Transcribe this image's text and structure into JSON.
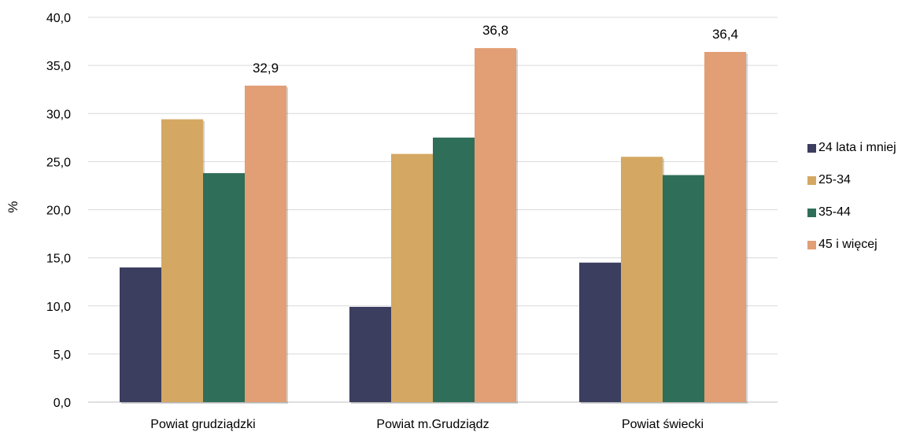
{
  "chart_data": {
    "type": "bar",
    "title": "",
    "xlabel": "",
    "ylabel": "%",
    "ylim": [
      0,
      40
    ],
    "ytick_step": 5,
    "ytick_labels": [
      "0,0",
      "5,0",
      "10,0",
      "15,0",
      "20,0",
      "25,0",
      "30,0",
      "35,0",
      "40,0"
    ],
    "grid": true,
    "legend_position": "right",
    "categories": [
      "Powiat grudziądzki",
      "Powiat m.Grudziądz",
      "Powiat świecki"
    ],
    "series": [
      {
        "name": "24 lata i mniej",
        "color": "#3b3e5f",
        "values": [
          14.0,
          9.9,
          14.5
        ]
      },
      {
        "name": "25-34",
        "color": "#d4a862",
        "values": [
          29.4,
          25.8,
          25.5
        ]
      },
      {
        "name": "35-44",
        "color": "#2f6e58",
        "values": [
          23.8,
          27.5,
          23.6
        ]
      },
      {
        "name": "45 i więcej",
        "color": "#e29e74",
        "values": [
          32.9,
          36.8,
          36.4
        ]
      }
    ],
    "data_labels": [
      {
        "series": 3,
        "category": 0,
        "text": "32,9"
      },
      {
        "series": 3,
        "category": 1,
        "text": "36,8"
      },
      {
        "series": 3,
        "category": 2,
        "text": "36,4"
      }
    ]
  }
}
